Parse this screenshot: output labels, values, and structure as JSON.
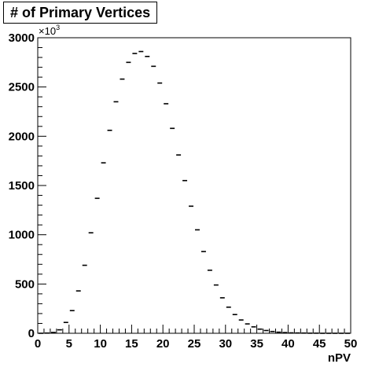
{
  "chart_data": {
    "type": "scatter",
    "style": "histogram-markers",
    "title": "# of Primary Vertices",
    "xlabel": "nPV",
    "ylabel": "",
    "y_multiplier_label": "×10",
    "y_multiplier_exponent": "3",
    "xlim": [
      0,
      50
    ],
    "ylim": [
      0,
      3000
    ],
    "x_ticks": [
      0,
      5,
      10,
      15,
      20,
      25,
      30,
      35,
      40,
      45,
      50
    ],
    "x_tick_labels": [
      "0",
      "5",
      "10",
      "15",
      "20",
      "25",
      "30",
      "35",
      "40",
      "45",
      "50"
    ],
    "y_ticks": [
      0,
      500,
      1000,
      1500,
      2000,
      2500,
      3000
    ],
    "y_tick_labels": [
      "0",
      "500",
      "1000",
      "1500",
      "2000",
      "2500",
      "3000"
    ],
    "grid": false,
    "legend": "none",
    "bin_width": 1,
    "x": [
      0.5,
      1.5,
      2.5,
      3.5,
      4.5,
      5.5,
      6.5,
      7.5,
      8.5,
      9.5,
      10.5,
      11.5,
      12.5,
      13.5,
      14.5,
      15.5,
      16.5,
      17.5,
      18.5,
      19.5,
      20.5,
      21.5,
      22.5,
      23.5,
      24.5,
      25.5,
      26.5,
      27.5,
      28.5,
      29.5,
      30.5,
      31.5,
      32.5,
      33.5,
      34.5,
      35.5,
      36.5,
      37.5,
      38.5,
      39.5,
      40.5,
      41.5,
      42.5,
      43.5,
      44.5,
      45.5,
      46.5,
      47.5,
      48.5,
      49.5
    ],
    "values": [
      0,
      2,
      8,
      35,
      110,
      230,
      430,
      690,
      1020,
      1370,
      1730,
      2060,
      2350,
      2580,
      2750,
      2840,
      2860,
      2810,
      2710,
      2540,
      2330,
      2080,
      1810,
      1550,
      1290,
      1050,
      830,
      640,
      490,
      360,
      265,
      190,
      135,
      95,
      65,
      42,
      28,
      18,
      11,
      7,
      4,
      3,
      2,
      1,
      1,
      0,
      0,
      0,
      0,
      0
    ],
    "color": "#000000"
  }
}
